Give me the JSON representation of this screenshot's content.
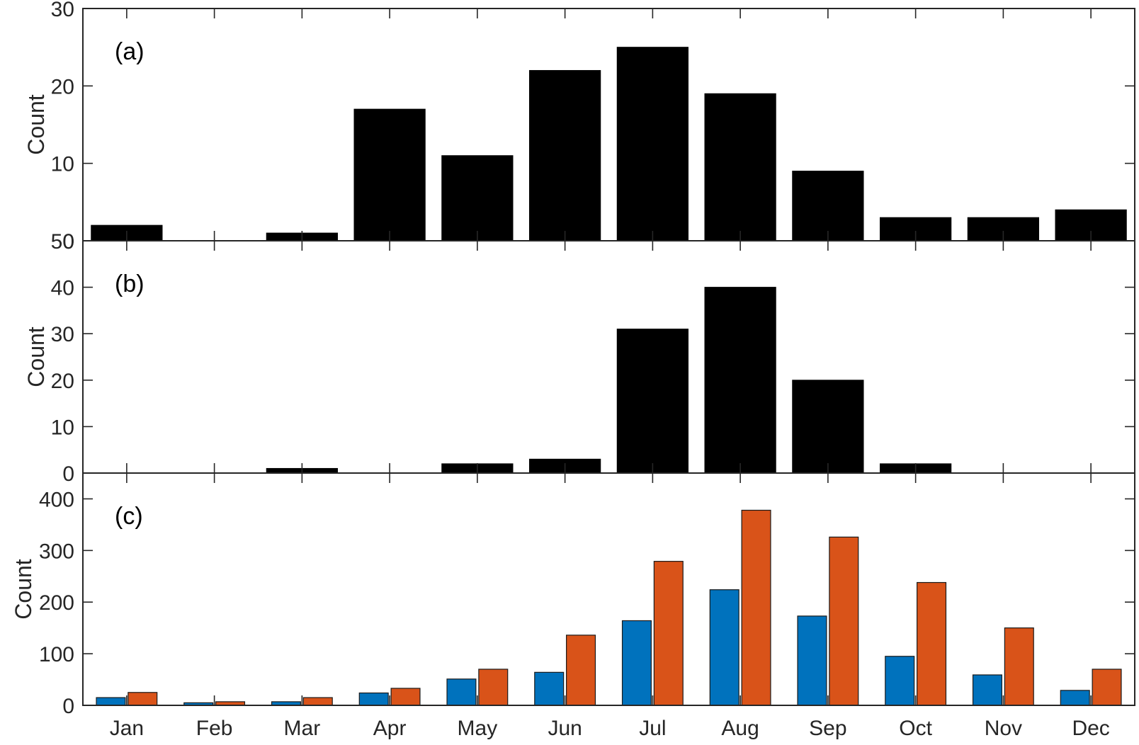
{
  "chart_data": [
    {
      "type": "bar",
      "panel_label": "(a)",
      "ylabel": "Count",
      "xlabel": "",
      "categories": [
        "Jan",
        "Feb",
        "Mar",
        "Apr",
        "May",
        "Jun",
        "Jul",
        "Aug",
        "Sep",
        "Oct",
        "Nov",
        "Dec"
      ],
      "values": [
        2,
        0,
        1,
        17,
        11,
        22,
        25,
        19,
        9,
        3,
        3,
        4
      ],
      "ylim": [
        0,
        30
      ],
      "yticks": [
        "0",
        "10",
        "20",
        "30"
      ],
      "bar_color": "#000000",
      "grid": false
    },
    {
      "type": "bar",
      "panel_label": "(b)",
      "ylabel": "Count",
      "xlabel": "",
      "categories": [
        "Jan",
        "Feb",
        "Mar",
        "Apr",
        "May",
        "Jun",
        "Jul",
        "Aug",
        "Sep",
        "Oct",
        "Nov",
        "Dec"
      ],
      "values": [
        0,
        0,
        1,
        0,
        2,
        3,
        31,
        40,
        20,
        2,
        0,
        0
      ],
      "ylim": [
        0,
        50
      ],
      "yticks": [
        "0",
        "10",
        "20",
        "30",
        "40",
        "50"
      ],
      "bar_color": "#000000",
      "grid": false
    },
    {
      "type": "bar",
      "panel_label": "(c)",
      "ylabel": "Count",
      "xlabel": "",
      "categories": [
        "Jan",
        "Feb",
        "Mar",
        "Apr",
        "May",
        "Jun",
        "Jul",
        "Aug",
        "Sep",
        "Oct",
        "Nov",
        "Dec"
      ],
      "ylim": [
        0,
        450
      ],
      "yticks": [
        "0",
        "100",
        "200",
        "300",
        "400"
      ],
      "series": [
        {
          "color": "#0072BD",
          "values": [
            15,
            5,
            7,
            24,
            51,
            64,
            164,
            224,
            173,
            95,
            59,
            29
          ]
        },
        {
          "color": "#D95319",
          "values": [
            25,
            7,
            15,
            33,
            70,
            136,
            279,
            378,
            326,
            238,
            150,
            70
          ]
        }
      ],
      "grid": false
    }
  ]
}
